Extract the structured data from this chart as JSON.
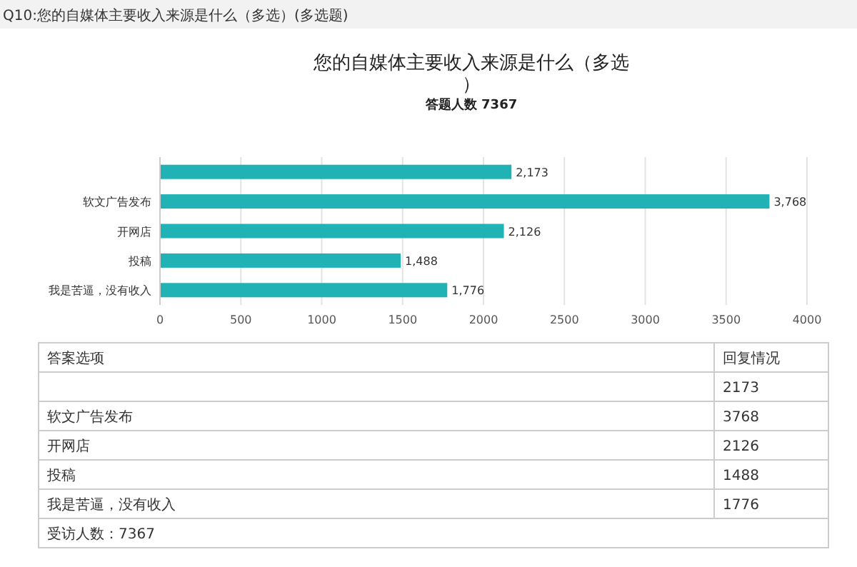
{
  "chart_data": {
    "type": "bar",
    "orientation": "horizontal",
    "title": "您的自媒体主要收入来源是什么（多选）",
    "subtitle": "答题人数 7367",
    "categories": [
      null,
      "软文广告发布",
      "开网店",
      "投稿",
      "我是苦逼，没有收入"
    ],
    "values": [
      2173,
      3768,
      2126,
      1488,
      1776
    ],
    "value_labels": [
      "2,173",
      "3,768",
      "2,126",
      "1,488",
      "1,776"
    ],
    "color": "#20b2b4",
    "xlim": [
      0,
      4000
    ],
    "xticks": [
      0,
      500,
      1000,
      1500,
      2000,
      2500,
      3000,
      3500,
      4000
    ],
    "grid": "x",
    "annotations": [
      "Q10:您的自媒体主要收入来源是什么（多选）(多选题)",
      "答案选项",
      "回复情况",
      "2173",
      "3768",
      "2126",
      "1488",
      "1776",
      "受访人数：7367"
    ]
  }
}
